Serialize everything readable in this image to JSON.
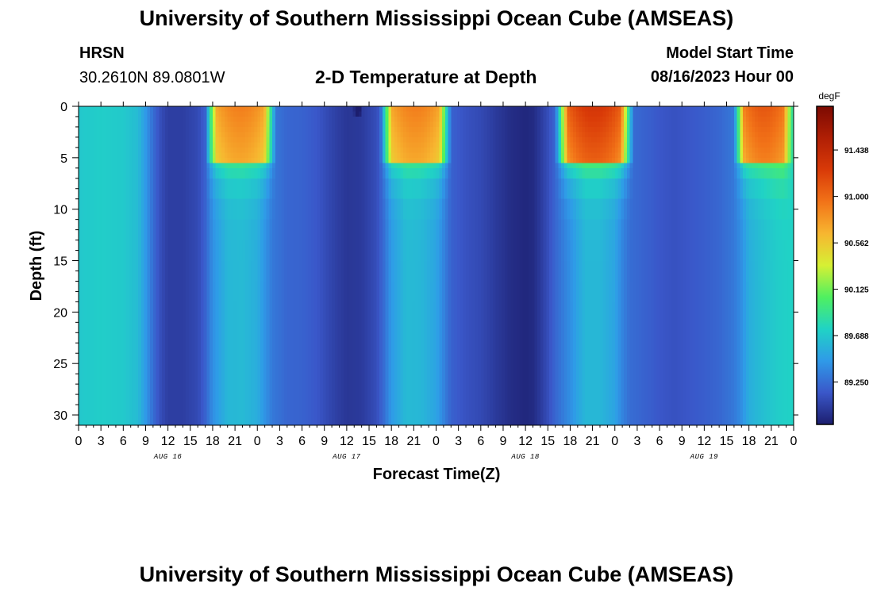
{
  "header": {
    "title": "University of Southern Mississippi Ocean Cube (AMSEAS)",
    "station": "HRSN",
    "coords": "30.2610N  89.0801W",
    "plot_title": "2-D Temperature at Depth",
    "model_start_label": "Model Start Time",
    "model_start_value": "08/16/2023 Hour 00"
  },
  "footer": {
    "title": "University of Southern Mississippi Ocean Cube (AMSEAS)"
  },
  "chart_data": {
    "type": "heatmap",
    "title": "2-D Temperature at Depth",
    "xlabel": "Forecast Time(Z)",
    "ylabel": "Depth (ft)",
    "x_range_hours": [
      0,
      96
    ],
    "y_range_ft": [
      0,
      31
    ],
    "y_inverted": true,
    "x_tick_labels": [
      "0",
      "3",
      "6",
      "9",
      "12",
      "15",
      "18",
      "21",
      "0",
      "3",
      "6",
      "9",
      "12",
      "15",
      "18",
      "21",
      "0",
      "3",
      "6",
      "9",
      "12",
      "15",
      "18",
      "21",
      "0",
      "3",
      "6",
      "9",
      "12",
      "15",
      "18",
      "21",
      "0"
    ],
    "y_tick_values": [
      0,
      5,
      10,
      15,
      20,
      25,
      30
    ],
    "y_tick_labels": [
      "0",
      "5",
      "10",
      "15",
      "20",
      "25",
      "30"
    ],
    "day_labels": [
      {
        "label": "AUG 16",
        "hour": 12
      },
      {
        "label": "AUG 17",
        "hour": 36
      },
      {
        "label": "AUG 18",
        "hour": 60
      },
      {
        "label": "AUG 19",
        "hour": 84
      }
    ],
    "colorbar": {
      "unit": "degF",
      "min": 88.85,
      "max": 91.85,
      "tick_values": [
        91.438,
        91.0,
        90.562,
        90.125,
        89.688,
        89.25
      ],
      "tick_labels": [
        "91.438",
        "91.000",
        "90.562",
        "90.125",
        "89.688",
        "89.250"
      ],
      "colors": [
        "#1c1e6e",
        "#3a57c9",
        "#2f9ae8",
        "#20d3c5",
        "#4ff060",
        "#d6f034",
        "#f7b630",
        "#f27318",
        "#d93a08",
        "#b01f05",
        "#7c0a02"
      ]
    },
    "time_series_hours": [
      0,
      3,
      6,
      8,
      9,
      10,
      11,
      12,
      14,
      16,
      17,
      18,
      20,
      22,
      24,
      25,
      26,
      28,
      30,
      32,
      34,
      36,
      38,
      40,
      41,
      42,
      44,
      46,
      48,
      49,
      50,
      52,
      54,
      56,
      58,
      60,
      61,
      62,
      63,
      64,
      66,
      68,
      70,
      72,
      73,
      74,
      76,
      78,
      80,
      82,
      84,
      86,
      88,
      89,
      90,
      92,
      94,
      96
    ],
    "deep_temperature_degF": [
      89.69,
      89.72,
      89.7,
      89.62,
      89.45,
      89.25,
      89.1,
      89.02,
      89.02,
      89.08,
      89.2,
      89.4,
      89.6,
      89.62,
      89.55,
      89.42,
      89.3,
      89.22,
      89.2,
      89.15,
      89.05,
      88.98,
      89.0,
      89.1,
      89.25,
      89.45,
      89.62,
      89.6,
      89.5,
      89.35,
      89.2,
      89.12,
      89.08,
      89.0,
      88.93,
      88.9,
      88.92,
      89.0,
      89.1,
      89.22,
      89.4,
      89.6,
      89.6,
      89.5,
      89.35,
      89.25,
      89.2,
      89.15,
      89.12,
      89.15,
      89.18,
      89.22,
      89.3,
      89.4,
      89.55,
      89.65,
      89.72,
      89.75
    ],
    "surface_warm_events": [
      {
        "start_hour": 17.0,
        "end_hour": 26.5,
        "peak_degF": 90.9
      },
      {
        "start_hour": 40.5,
        "end_hour": 50.0,
        "peak_degF": 90.9
      },
      {
        "start_hour": 64.0,
        "end_hour": 74.5,
        "peak_degF": 91.3
      },
      {
        "start_hour": 88.0,
        "end_hour": 96.0,
        "peak_degF": 91.1
      }
    ],
    "surface_layer_depth_ft": 5.5,
    "surface_cold_spots": [
      {
        "hour": 37.5,
        "depth_ft": 0.4,
        "degF": 88.7
      }
    ]
  }
}
